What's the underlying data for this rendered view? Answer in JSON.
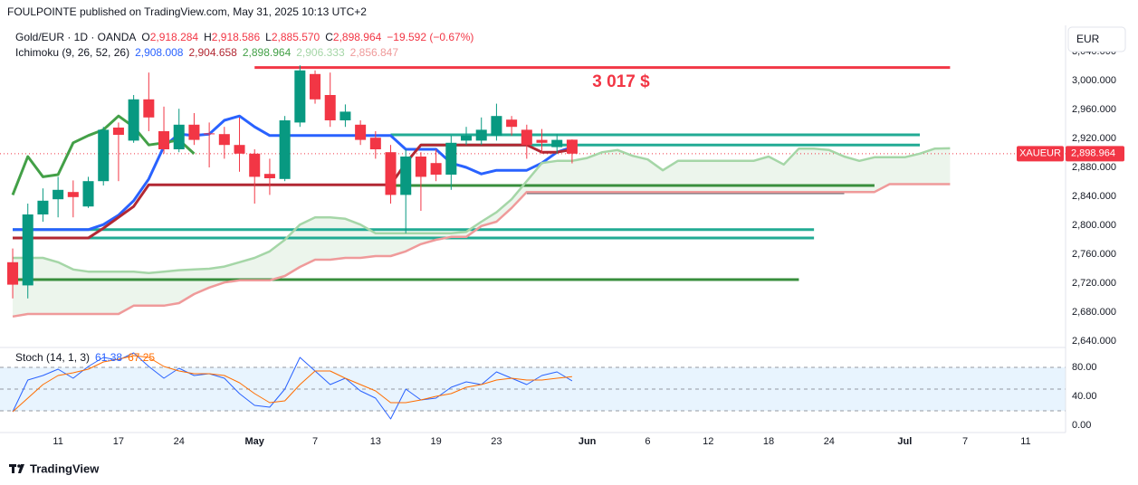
{
  "header": "FOULPOINTE published on TradingView.com, May 31, 2025 10:13 UTC+2",
  "footer": "TradingView",
  "currency_button": "EUR",
  "chart_data": {
    "type": "candlestick",
    "symbol": "Gold/EUR · 1D · OANDA",
    "ohlc": [
      {
        "key": "O",
        "text": "2,918.284"
      },
      {
        "key": "H",
        "text": "2,918.586"
      },
      {
        "key": "L",
        "text": "2,885.570"
      },
      {
        "key": "C",
        "text": "2,898.964"
      }
    ],
    "change": "−19.592 (−0.67%)",
    "ohlc_color": "#f23645",
    "up_color": "#089981",
    "down_color": "#f23645",
    "x": [
      0,
      1,
      2,
      3,
      4,
      5,
      6,
      7,
      8,
      9,
      10,
      11,
      12,
      13,
      14,
      15,
      16,
      17,
      18,
      19,
      20,
      21,
      22,
      23,
      24,
      25,
      26,
      27,
      28,
      29,
      30,
      31,
      32,
      33,
      34,
      35,
      36,
      37
    ],
    "open": [
      2749,
      2717,
      2815,
      2836,
      2846,
      2826,
      2861,
      2935,
      2917,
      2974,
      2930,
      2905,
      2939,
      2927,
      2926,
      2911,
      2899,
      2871,
      2864,
      2942,
      3009,
      2980,
      2945,
      2939,
      2921,
      2901,
      2842,
      2895,
      2886,
      2870,
      2917,
      2917,
      2924,
      2946,
      2932,
      2918,
      2908,
      2918.284
    ],
    "high": [
      2768,
      2830,
      2851,
      2867,
      2862,
      2867,
      2936,
      2942,
      2980,
      3011,
      2964,
      2961,
      2955,
      2942,
      2936,
      2949,
      2905,
      2892,
      2951,
      3021,
      3014,
      3011,
      2967,
      2945,
      2930,
      2911,
      2905,
      2901,
      2905,
      2924,
      2936,
      2949,
      2968,
      2951,
      2939,
      2933,
      2926,
      2918.586
    ],
    "low": [
      2699,
      2699,
      2805,
      2811,
      2811,
      2824,
      2855,
      2861,
      2914,
      2930,
      2899,
      2901,
      2911,
      2880,
      2892,
      2874,
      2830,
      2842,
      2861,
      2936,
      2968,
      2936,
      2936,
      2911,
      2892,
      2830,
      2789,
      2820,
      2861,
      2849,
      2911,
      2911,
      2917,
      2924,
      2892,
      2899,
      2899,
      2885.57
    ],
    "close": [
      2718,
      2815,
      2834,
      2849,
      2839,
      2861,
      2932,
      2925,
      2974,
      2949,
      2905,
      2939,
      2918,
      2926,
      2911,
      2899,
      2867,
      2865,
      2945,
      3014,
      2974,
      2945,
      2957,
      2918,
      2905,
      2842,
      2895,
      2867,
      2870,
      2914,
      2924,
      2932,
      2951,
      2936,
      2911,
      2914,
      2918,
      2898.964
    ],
    "xlim": [
      -0.84,
      69.64
    ],
    "ylim": [
      2632.5,
      3076.25
    ],
    "xticks": [
      {
        "value": 3,
        "label": "11"
      },
      {
        "value": 7,
        "label": "17"
      },
      {
        "value": 11,
        "label": "24"
      },
      {
        "value": 16,
        "label": "May"
      },
      {
        "value": 20,
        "label": "7"
      },
      {
        "value": 24,
        "label": "13"
      },
      {
        "value": 28,
        "label": "19"
      },
      {
        "value": 32,
        "label": "23"
      },
      {
        "value": 38,
        "label": "Jun"
      },
      {
        "value": 42,
        "label": "6"
      },
      {
        "value": 46,
        "label": "12"
      },
      {
        "value": 50,
        "label": "18"
      },
      {
        "value": 54,
        "label": "24"
      },
      {
        "value": 59,
        "label": "Jul"
      },
      {
        "value": 63,
        "label": "7"
      },
      {
        "value": 67,
        "label": "11"
      }
    ],
    "yticks": [
      {
        "value": 3040,
        "label": "3,040.000"
      },
      {
        "value": 3000,
        "label": "3,000.000"
      },
      {
        "value": 2960,
        "label": "2,960.000"
      },
      {
        "value": 2920,
        "label": "2,920.000"
      },
      {
        "value": 2880,
        "label": "2,880.000"
      },
      {
        "value": 2840,
        "label": "2,840.000"
      },
      {
        "value": 2800,
        "label": "2,800.000"
      },
      {
        "value": 2760,
        "label": "2,760.000"
      },
      {
        "value": 2720,
        "label": "2,720.000"
      },
      {
        "value": 2680,
        "label": "2,680.000"
      },
      {
        "value": 2640,
        "label": "2,640.000"
      }
    ],
    "ichimoku": {
      "name": "Ichimoku (9, 26, 52, 26)",
      "cloud_color": "rgba(67,160,71,0.10)",
      "lines": [
        {
          "value_label": "2,908.008",
          "color": "#2962ff",
          "width": 3,
          "x": [
            0,
            1,
            2,
            3,
            4,
            5,
            6,
            7,
            8,
            9,
            10,
            11,
            12,
            13,
            14,
            15,
            16,
            17,
            18,
            19,
            20,
            21,
            22,
            23,
            24,
            25,
            26,
            27,
            28,
            29,
            30,
            31,
            32,
            33,
            34,
            35,
            36,
            37
          ],
          "values": [
            2794,
            2794,
            2794,
            2794,
            2794,
            2794,
            2801,
            2814,
            2834,
            2864,
            2909,
            2926,
            2924,
            2926,
            2945,
            2951,
            2936,
            2924,
            2924,
            2924,
            2924,
            2924,
            2924,
            2924,
            2924,
            2924,
            2905,
            2905,
            2905,
            2886,
            2880,
            2871,
            2876,
            2876,
            2876,
            2886,
            2901,
            2908.008
          ]
        },
        {
          "value_label": "2,904.658",
          "color": "#b22833",
          "width": 3,
          "x": [
            0,
            1,
            2,
            3,
            4,
            5,
            6,
            7,
            8,
            9,
            10,
            11,
            12,
            13,
            14,
            15,
            16,
            17,
            18,
            19,
            20,
            21,
            22,
            23,
            24,
            25,
            26,
            27,
            28,
            29,
            30,
            31,
            32,
            33,
            34,
            35,
            36,
            37
          ],
          "values": [
            2782.5,
            2782.5,
            2782.5,
            2782.5,
            2782.5,
            2782.5,
            2796,
            2811,
            2826,
            2856,
            2856,
            2856,
            2856,
            2856,
            2856,
            2856,
            2856,
            2856,
            2856,
            2856,
            2856,
            2856,
            2856,
            2856,
            2856,
            2856,
            2886,
            2911,
            2911,
            2911,
            2911,
            2911,
            2911,
            2911,
            2911,
            2901,
            2901,
            2904.658
          ]
        },
        {
          "value_label": "2,898.964",
          "color": "#43a047",
          "width": 3,
          "x": [
            0,
            1,
            2,
            3,
            4,
            5,
            6,
            7,
            8,
            9,
            10,
            11,
            12
          ],
          "values": [
            2842,
            2895,
            2867,
            2870,
            2914,
            2924,
            2932,
            2951,
            2936,
            2911,
            2914,
            2918,
            2898.964
          ]
        },
        {
          "value_label": "2,906.333",
          "color": "#a5d6a7",
          "width": 2.5,
          "x": [
            0,
            1,
            2,
            3,
            4,
            5,
            6,
            7,
            8,
            9,
            10,
            11,
            12,
            13,
            14,
            15,
            16,
            17,
            18,
            19,
            20,
            21,
            22,
            23,
            24,
            25,
            26,
            27,
            28,
            29,
            30,
            31,
            32,
            33,
            34,
            35,
            36,
            37,
            38,
            39,
            40,
            41,
            42,
            43,
            44,
            45,
            46,
            47,
            48,
            49,
            50,
            51,
            52,
            53,
            54,
            55,
            56,
            57,
            58,
            59,
            60,
            61,
            62
          ],
          "values": [
            2755,
            2755,
            2755,
            2749,
            2739,
            2736,
            2736,
            2736,
            2736,
            2734,
            2736,
            2738,
            2739,
            2740,
            2743,
            2749,
            2755,
            2764,
            2780,
            2801,
            2811,
            2811,
            2809,
            2801,
            2789,
            2789,
            2789,
            2789,
            2789,
            2789,
            2791,
            2805,
            2818,
            2836,
            2861,
            2886,
            2889,
            2889,
            2893,
            2901,
            2904,
            2896,
            2891,
            2876,
            2889,
            2889,
            2889,
            2889,
            2889,
            2889,
            2895,
            2884,
            2906,
            2906,
            2904,
            2895,
            2889,
            2894,
            2894,
            2894,
            2899,
            2906,
            2906.333
          ]
        },
        {
          "value_label": "2,856.847",
          "color": "#ef9a9a",
          "width": 2.5,
          "x": [
            0,
            1,
            2,
            3,
            4,
            5,
            6,
            7,
            8,
            9,
            10,
            11,
            12,
            13,
            14,
            15,
            16,
            17,
            18,
            19,
            20,
            21,
            22,
            23,
            24,
            25,
            26,
            27,
            28,
            29,
            30,
            31,
            32,
            33,
            34,
            35,
            36,
            37,
            38,
            39,
            40,
            41,
            42,
            43,
            44,
            45,
            46,
            47,
            48,
            49,
            50,
            51,
            52,
            53,
            54,
            55,
            56,
            57,
            58,
            59,
            60,
            61,
            62
          ],
          "values": [
            2674,
            2677.5,
            2677.5,
            2677.5,
            2677.5,
            2677.5,
            2677.5,
            2677.5,
            2689,
            2689,
            2689,
            2692.5,
            2705,
            2714,
            2721,
            2724,
            2724,
            2724,
            2730,
            2742.5,
            2752.5,
            2752.5,
            2755,
            2755,
            2757.5,
            2757.5,
            2764,
            2774,
            2780,
            2784,
            2784,
            2799,
            2805,
            2824,
            2846,
            2846,
            2846,
            2846,
            2846,
            2846,
            2846,
            2846,
            2846,
            2846,
            2846,
            2846,
            2846,
            2846,
            2846,
            2846,
            2846,
            2846,
            2846,
            2846,
            2846,
            2846,
            2846,
            2846,
            2856.847,
            2856.847,
            2856.847,
            2856.847,
            2856.847
          ]
        }
      ]
    },
    "levels": [
      {
        "value": 3018,
        "x": [
          16,
          62
        ],
        "color": "#f23645"
      },
      {
        "value": 2925,
        "x": [
          25,
          60
        ],
        "color": "#22ab94"
      },
      {
        "value": 2911,
        "x": [
          27,
          60
        ],
        "color": "#22ab94"
      },
      {
        "value": 2855,
        "x": [
          25,
          57
        ],
        "color": "#388e3c"
      },
      {
        "value": 2845,
        "x": [
          34,
          55
        ],
        "color": "#5d606b"
      },
      {
        "value": 2794,
        "x": [
          0,
          53
        ],
        "color": "#22ab94"
      },
      {
        "value": 2782.5,
        "x": [
          0,
          53
        ],
        "color": "#22ab94"
      },
      {
        "value": 2725,
        "x": [
          0,
          52
        ],
        "color": "#388e3c"
      }
    ],
    "annotation": "3 017 $",
    "price_tag": {
      "symbol": "XAUEUR",
      "value": 2898.964,
      "label": "2,898.964",
      "color": "#f23645"
    },
    "stoch": {
      "title": "Stoch (14, 1, 3)",
      "ylim": [
        -10,
        106.25
      ],
      "yticks": [
        {
          "value": 80,
          "label": "80.00"
        },
        {
          "value": 40,
          "label": "40.00"
        },
        {
          "value": 0,
          "label": "0.00"
        }
      ],
      "bands": [
        80,
        50,
        20
      ],
      "band_color": "rgba(33,150,243,0.10)",
      "series": [
        {
          "value_label": "61.38",
          "color": "#2962ff",
          "values": [
            18.75,
            62.5,
            68.75,
            77.5,
            65,
            81.25,
            93.75,
            90,
            100,
            81.25,
            65,
            78.75,
            68.75,
            71.25,
            65,
            43.75,
            27.5,
            25,
            50,
            93.75,
            75,
            56.25,
            65,
            47.5,
            37.5,
            8.75,
            50,
            35,
            37.5,
            52.5,
            60,
            56.25,
            73.75,
            65,
            56.25,
            68.75,
            73.75,
            61.38
          ]
        },
        {
          "value_label": "67.25",
          "color": "#ff6d00",
          "values": [
            18.75,
            37.5,
            56.25,
            68.75,
            72.5,
            77.5,
            87.5,
            91.25,
            96.25,
            93.75,
            81.25,
            75,
            71.25,
            71.25,
            68.75,
            58.75,
            43.75,
            31.25,
            33.75,
            56.25,
            75,
            75,
            65,
            56.25,
            47.5,
            31.25,
            31.25,
            35,
            40,
            43.75,
            52.5,
            56.25,
            62.5,
            65,
            62.5,
            62.5,
            65,
            67.25
          ]
        }
      ]
    }
  }
}
